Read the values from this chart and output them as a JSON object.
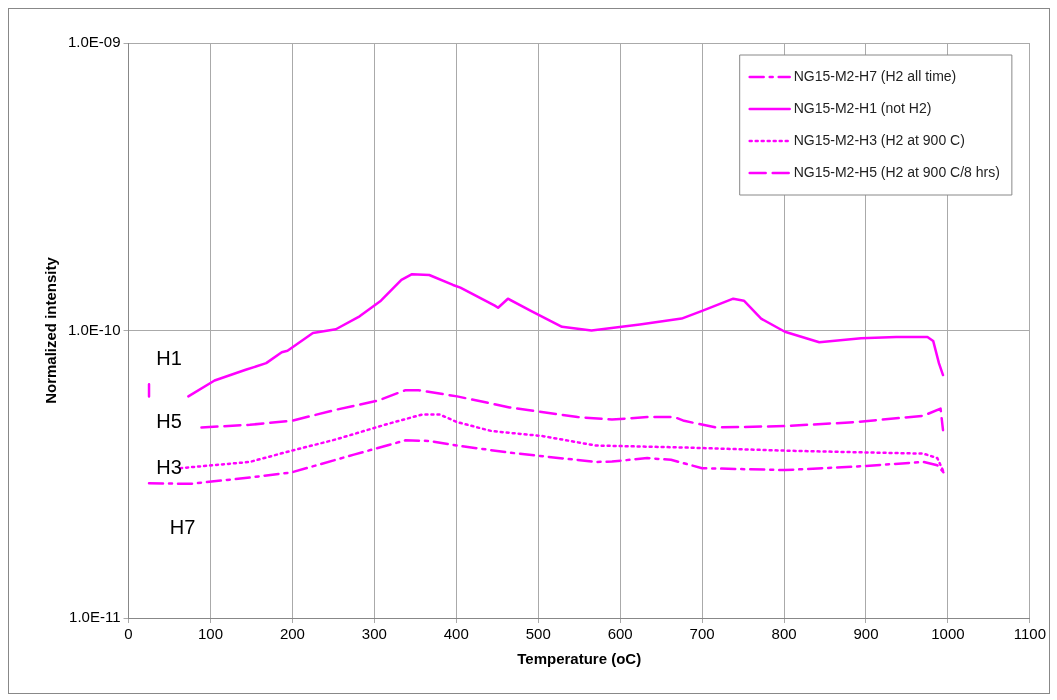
{
  "chart_data": {
    "type": "line",
    "xlabel": "Temperature (oC)",
    "ylabel": "Normalized intensity",
    "log": "y",
    "grid": true,
    "legend": "top right",
    "marker": "none",
    "xlim": [
      0,
      1100
    ],
    "xticks": [
      0,
      100,
      200,
      300,
      400,
      500,
      600,
      700,
      800,
      900,
      1000,
      1100
    ],
    "ylim": [
      1e-11,
      1e-09
    ],
    "yticks": [
      {
        "value": 1e-11,
        "label": "1.0E-11"
      },
      {
        "value": 1e-10,
        "label": "1.0E-10"
      },
      {
        "value": 1e-09,
        "label": "1.0E-09"
      }
    ],
    "annotations": [
      "H1",
      "H5",
      "H3",
      "H7"
    ],
    "series": [
      {
        "name": "NG15-M2-H7 (H2 all time)",
        "color": "#ff00ff",
        "line_style": "dashdot",
        "x": [
          25,
          76,
          148,
          199,
          275,
          338,
          367,
          401,
          465,
          570,
          590,
          633,
          662,
          700,
          801,
          886,
          970,
          987,
          995
        ],
        "values": [
          2.94e-11,
          2.93e-11,
          3.08e-11,
          3.21e-11,
          3.7e-11,
          4.15e-11,
          4.13e-11,
          3.98e-11,
          3.76e-11,
          3.49e-11,
          3.5e-11,
          3.6e-11,
          3.55e-11,
          3.32e-11,
          3.27e-11,
          3.36e-11,
          3.49e-11,
          3.4e-11,
          3.2e-11
        ]
      },
      {
        "name": "NG15-M2-H1 (not H2)",
        "color": "#ff00ff",
        "line_style": "solid",
        "x": [
          25,
          25,
          50,
          73,
          105,
          143,
          168,
          187,
          194,
          225,
          253,
          282,
          308,
          333,
          346,
          367,
          396,
          405,
          447,
          451,
          463,
          491,
          529,
          565,
          624,
          675,
          700,
          738,
          751,
          772,
          801,
          843,
          894,
          937,
          975,
          982,
          989,
          994
        ],
        "values": [
          6.5e-11,
          5.9e-11,
          null,
          5.9e-11,
          6.7e-11,
          7.3e-11,
          7.7e-11,
          8.4e-11,
          8.5e-11,
          9.8e-11,
          1.01e-10,
          1.12e-10,
          1.27e-10,
          1.5e-10,
          1.57e-10,
          1.56e-10,
          1.44e-10,
          1.41e-10,
          1.22e-10,
          1.2e-10,
          1.29e-10,
          1.17e-10,
          1.03e-10,
          1e-10,
          1.05e-10,
          1.1e-10,
          1.17e-10,
          1.29e-10,
          1.27e-10,
          1.1e-10,
          9.9e-11,
          9.1e-11,
          9.4e-11,
          9.5e-11,
          9.5e-11,
          9.2e-11,
          7.7e-11,
          7e-11
        ]
      },
      {
        "name": "NG15-M2-H3 (H2 at 900 C)",
        "color": "#ff00ff",
        "line_style": "dotted",
        "x": [
          63,
          148,
          190,
          253,
          316,
          358,
          380,
          401,
          443,
          506,
          570,
          675,
          801,
          970,
          987,
          995
        ],
        "values": [
          3.32e-11,
          3.49e-11,
          3.76e-11,
          4.18e-11,
          4.73e-11,
          5.1e-11,
          5.1e-11,
          4.8e-11,
          4.47e-11,
          4.29e-11,
          3.98e-11,
          3.92e-11,
          3.82e-11,
          3.73e-11,
          3.6e-11,
          3.21e-11
        ]
      },
      {
        "name": "NG15-M2-H5 (H2 at 900 C/8 hrs)",
        "color": "#ff00ff",
        "line_style": "dashed",
        "x": [
          89,
          148,
          199,
          253,
          304,
          338,
          354,
          401,
          465,
          548,
          590,
          633,
          666,
          678,
          717,
          801,
          886,
          970,
          991,
          994
        ],
        "values": [
          4.6e-11,
          4.7e-11,
          4.85e-11,
          5.3e-11,
          5.7e-11,
          6.2e-11,
          6.2e-11,
          5.9e-11,
          5.4e-11,
          5e-11,
          4.9e-11,
          5e-11,
          5e-11,
          4.85e-11,
          4.6e-11,
          4.65e-11,
          4.8e-11,
          5.05e-11,
          5.35e-11,
          4.5e-11
        ]
      }
    ]
  }
}
